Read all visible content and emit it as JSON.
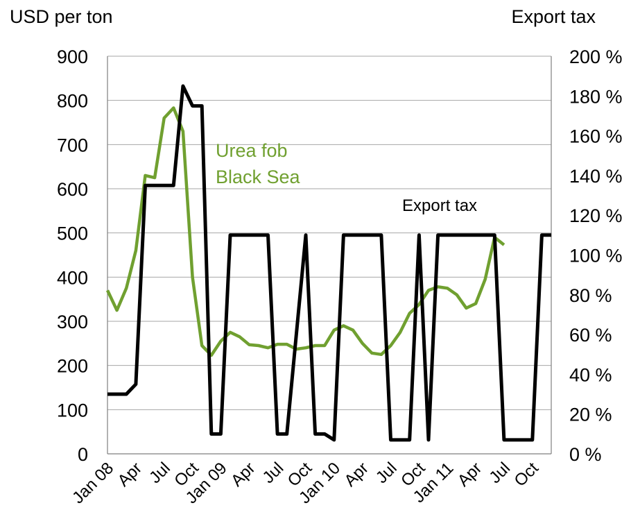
{
  "chart_data": {
    "type": "line",
    "left_axis_title": "USD per ton",
    "right_axis_title": "Export tax",
    "x_tick_labels": [
      "Jan 08",
      "Apr",
      "Jul",
      "Oct",
      "Jan 09",
      "Apr",
      "Jul",
      "Oct",
      "Jan 10",
      "Apr",
      "Jul",
      "Oct",
      "Jan 11",
      "Apr",
      "Jul",
      "Oct"
    ],
    "y_left": {
      "min": 0,
      "max": 900,
      "step": 100,
      "tick_labels": [
        "0",
        "100",
        "200",
        "300",
        "400",
        "500",
        "600",
        "700",
        "800",
        "900"
      ]
    },
    "y_right": {
      "min": 0,
      "max": 200,
      "step": 20,
      "tick_labels": [
        "0 %",
        "20 %",
        "40 %",
        "60 %",
        "80 %",
        "100 %",
        "120 %",
        "140 %",
        "160 %",
        "180 %",
        "200 %"
      ]
    },
    "grid": "horizontal",
    "series": [
      {
        "name": "Urea fob Black Sea",
        "label_lines": [
          "Urea fob",
          "Black Sea"
        ],
        "axis": "left",
        "color": "#70a030",
        "points": [
          [
            0,
            370
          ],
          [
            1,
            325
          ],
          [
            2,
            375
          ],
          [
            3,
            460
          ],
          [
            4,
            630
          ],
          [
            5,
            625
          ],
          [
            6,
            760
          ],
          [
            7,
            783
          ],
          [
            8,
            730
          ],
          [
            9,
            400
          ],
          [
            10,
            245
          ],
          [
            11,
            223
          ],
          [
            12,
            255
          ],
          [
            13,
            275
          ],
          [
            14,
            265
          ],
          [
            15,
            247
          ],
          [
            16,
            245
          ],
          [
            17,
            240
          ],
          [
            18,
            248
          ],
          [
            19,
            248
          ],
          [
            20,
            237
          ],
          [
            21,
            240
          ],
          [
            22,
            245
          ],
          [
            23,
            245
          ],
          [
            24,
            280
          ],
          [
            25,
            290
          ],
          [
            26,
            280
          ],
          [
            27,
            250
          ],
          [
            28,
            228
          ],
          [
            29,
            225
          ],
          [
            30,
            245
          ],
          [
            31,
            275
          ],
          [
            32,
            318
          ],
          [
            33,
            338
          ],
          [
            34,
            370
          ],
          [
            35,
            378
          ],
          [
            36,
            375
          ],
          [
            37,
            360
          ],
          [
            38,
            330
          ],
          [
            39,
            340
          ],
          [
            40,
            395
          ],
          [
            41,
            490
          ],
          [
            42,
            473
          ]
        ]
      },
      {
        "name": "Export tax",
        "axis": "right",
        "color": "#000000",
        "points": [
          [
            0,
            30
          ],
          [
            2,
            30
          ],
          [
            3,
            35
          ],
          [
            4,
            135
          ],
          [
            7,
            135
          ],
          [
            8,
            185
          ],
          [
            9,
            175
          ],
          [
            10,
            175
          ],
          [
            11,
            10
          ],
          [
            12,
            10
          ],
          [
            13,
            110
          ],
          [
            17,
            110
          ],
          [
            18,
            10
          ],
          [
            19,
            10
          ],
          [
            21,
            110
          ],
          [
            22,
            10
          ],
          [
            23,
            10
          ],
          [
            24,
            7
          ],
          [
            25,
            110
          ],
          [
            29,
            110
          ],
          [
            30,
            7
          ],
          [
            32,
            7
          ],
          [
            33,
            110
          ],
          [
            34,
            7
          ],
          [
            35,
            110
          ],
          [
            41,
            110
          ],
          [
            42,
            7
          ],
          [
            45,
            7
          ],
          [
            46,
            110
          ],
          [
            47,
            110
          ]
        ]
      }
    ],
    "annotations": [
      "Urea fob Black Sea",
      "Export tax"
    ]
  }
}
